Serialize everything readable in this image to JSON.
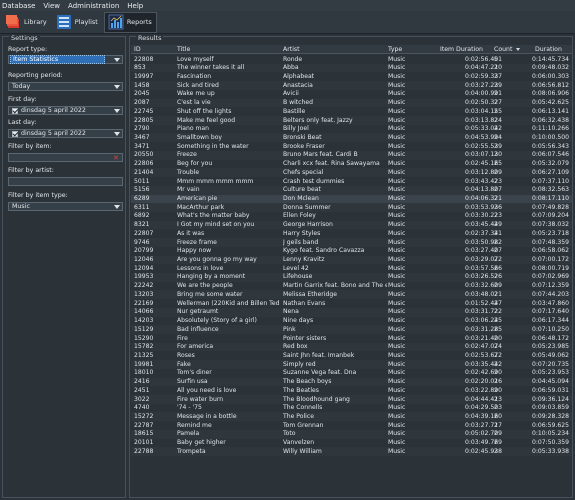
{
  "menu": [
    "Database",
    "View",
    "Administration",
    "Help"
  ],
  "toolbar": {
    "library": "Library",
    "playlist": "Playlist",
    "reports": "Reports"
  },
  "settings": {
    "title": "Settings",
    "report_type_label": "Report type:",
    "report_type_value": "Item Statistics",
    "reporting_period_label": "Reporting period:",
    "reporting_period_value": "Today",
    "first_day_label": "First day:",
    "first_day_value": "dinsdag 5 april 2022",
    "last_day_label": "Last day:",
    "last_day_value": "dinsdag 5 april 2022",
    "filter_item_label": "Filter by item:",
    "filter_artist_label": "Filter by artist:",
    "filter_type_label": "Filter by item type:",
    "filter_type_value": "Music"
  },
  "results": {
    "title": "Results",
    "columns": [
      "ID",
      "Title",
      "Artist",
      "Type",
      "Item Duration",
      "Count",
      "Duration"
    ],
    "rows": [
      [
        "22808",
        "Love myself",
        "Ronde",
        "Music",
        "0:02:56.401",
        "5",
        "0:14:45.734"
      ],
      [
        "853",
        "The winner takes it all",
        "Abba",
        "Music",
        "0:04:47.210",
        "2",
        "0:09:48.032"
      ],
      [
        "19997",
        "Fascination",
        "Alphabeat",
        "Music",
        "0:02:59.337",
        "2",
        "0:06:00.303"
      ],
      [
        "1458",
        "Sick and tired",
        "Anastacia",
        "Music",
        "0:03:27.239",
        "2",
        "0:06:56.812"
      ],
      [
        "2045",
        "Wake me up",
        "Avicii",
        "Music",
        "0:04:00.991",
        "2",
        "0:08:06.906"
      ],
      [
        "2087",
        "C'est la vie",
        "B witched",
        "Music",
        "0:02:50.327",
        "2",
        "0:05:42.625"
      ],
      [
        "22745",
        "Shut off the lights",
        "Bastille",
        "Music",
        "0:03:04.155",
        "2",
        "0:06:13.141"
      ],
      [
        "22805",
        "Make me feel good",
        "Belters only feat. Jazzy",
        "Music",
        "0:03:13.824",
        "2",
        "0:06:32.438"
      ],
      [
        "2790",
        "Piano man",
        "Billy Joel",
        "Music",
        "0:05:33.042",
        "2",
        "0:11:10.266"
      ],
      [
        "3467",
        "Smalltown boy",
        "Bronski Beat",
        "Music",
        "0:04:53.994",
        "2",
        "0:10:00.500"
      ],
      [
        "3471",
        "Something in the water",
        "Brooke Fraser",
        "Music",
        "0:02:55.539",
        "2",
        "0:05:56.343"
      ],
      [
        "20550",
        "Freeze",
        "Bruno Mars feat. Cardi B",
        "Music",
        "0:03:07.130",
        "2",
        "0:06:07.546"
      ],
      [
        "22806",
        "Beg for you",
        "Charli xcx feat. Rina Sawayama",
        "Music",
        "0:02:45.165",
        "2",
        "0:05:32.079"
      ],
      [
        "21404",
        "Trouble",
        "Chefs special",
        "Music",
        "0:03:12.809",
        "2",
        "0:06:27.109"
      ],
      [
        "5011",
        "Mmm mmm mmm mmm",
        "Crash test dummies",
        "Music",
        "0:03:43.423",
        "2",
        "0:07:37.110"
      ],
      [
        "5156",
        "Mr vain",
        "Culture beat",
        "Music",
        "0:04:13.807",
        "2",
        "0:08:32.563"
      ],
      [
        "6289",
        "American pie",
        "Don Mclean",
        "Music",
        "0:04:06.321",
        "2",
        "0:08:17.110"
      ],
      [
        "6311",
        "MacArthur park",
        "Donna Summer",
        "Music",
        "0:03:53.936",
        "2",
        "0:07:49.828"
      ],
      [
        "6892",
        "What's the matter baby",
        "Ellen Foley",
        "Music",
        "0:03:30.223",
        "2",
        "0:07:09.204"
      ],
      [
        "8321",
        "I Got my mind set on you",
        "George Harrison",
        "Music",
        "0:03:45.449",
        "2",
        "0:07:38.032"
      ],
      [
        "22807",
        "As it was",
        "Harry Styles",
        "Music",
        "0:02:37.341",
        "2",
        "0:05:23.718"
      ],
      [
        "9746",
        "Freeze frame",
        "J geils band",
        "Music",
        "0:03:50.982",
        "2",
        "0:07:48.359"
      ],
      [
        "20799",
        "Happy now",
        "Kygo feat. Sandro Cavazza",
        "Music",
        "0:03:27.407",
        "2",
        "0:06:58.062"
      ],
      [
        "12046",
        "Are you gonna go my way",
        "Lenny Kravitz",
        "Music",
        "0:03:29.072",
        "2",
        "0:07:00.172"
      ],
      [
        "12094",
        "Lessons in love",
        "Level 42",
        "Music",
        "0:03:57.566",
        "2",
        "0:08:00.719"
      ],
      [
        "19953",
        "Hanging by a moment",
        "Lifehouse",
        "Music",
        "0:03:26.526",
        "2",
        "0:07:02.969"
      ],
      [
        "22242",
        "We are the people",
        "Martin Garrix feat. Bono and The edge",
        "Music",
        "0:03:32.609",
        "2",
        "0:07:12.359"
      ],
      [
        "13203",
        "Bring me some water",
        "Melissa Etheridge",
        "Music",
        "0:03:48.021",
        "2",
        "0:07:44.203"
      ],
      [
        "22169",
        "Wellerman (220Kid and Billen Ted ve...",
        "Nathan Evans",
        "Music",
        "0:01:52.447",
        "2",
        "0:03:47.860"
      ],
      [
        "14066",
        "Nur getraumt",
        "Nena",
        "Music",
        "0:03:31.722",
        "2",
        "0:07:17.640"
      ],
      [
        "14203",
        "Absolutely (Story of a girl)",
        "Nine days",
        "Music",
        "0:03:06.245",
        "2",
        "0:06:17.344"
      ],
      [
        "15129",
        "Bad influence",
        "Pink",
        "Music",
        "0:03:31.285",
        "2",
        "0:07:10.250"
      ],
      [
        "15290",
        "Fire",
        "Pointer sisters",
        "Music",
        "0:03:21.400",
        "2",
        "0:06:48.172"
      ],
      [
        "15782",
        "For america",
        "Red box",
        "Music",
        "0:02:47.074",
        "2",
        "0:05:23.985"
      ],
      [
        "21325",
        "Roses",
        "Saint Jhn feat. Imanbek",
        "Music",
        "0:02:53.672",
        "2",
        "0:05:49.062"
      ],
      [
        "19981",
        "Fake",
        "Simply red",
        "Music",
        "0:03:35.442",
        "2",
        "0:07:20.735"
      ],
      [
        "18010",
        "Tom's diner",
        "Suzanne Vega feat. Dna",
        "Music",
        "0:02:42.690",
        "2",
        "0:05:23.953"
      ],
      [
        "2416",
        "Surfin usa",
        "The Beach boys",
        "Music",
        "0:02:20.016",
        "2",
        "0:04:45.094"
      ],
      [
        "2451",
        "All you need is love",
        "The Beatles",
        "Music",
        "0:03:22.890",
        "2",
        "0:06:59.031"
      ],
      [
        "3022",
        "Fire water burn",
        "The Bloodhound gang",
        "Music",
        "0:04:44.413",
        "2",
        "0:09:36.124"
      ],
      [
        "4740",
        "'74 - '75",
        "The Connells",
        "Music",
        "0:04:29.503",
        "2",
        "0:09:03.859"
      ],
      [
        "15272",
        "Message in a bottle",
        "The Police",
        "Music",
        "0:04:39.160",
        "2",
        "0:09:28.328"
      ],
      [
        "22787",
        "Remind me",
        "Tom Grennan",
        "Music",
        "0:03:27.717",
        "2",
        "0:06:59.625"
      ],
      [
        "18615",
        "Pamela",
        "Toto",
        "Music",
        "0:05:02.709",
        "2",
        "0:10:05.234"
      ],
      [
        "20101",
        "Baby get higher",
        "Vanvelzen",
        "Music",
        "0:03:49.769",
        "2",
        "0:07:50.359"
      ],
      [
        "22788",
        "Trompeta",
        "Willy William",
        "Music",
        "0:02:45.938",
        "2",
        "0:05:33.938"
      ]
    ]
  }
}
